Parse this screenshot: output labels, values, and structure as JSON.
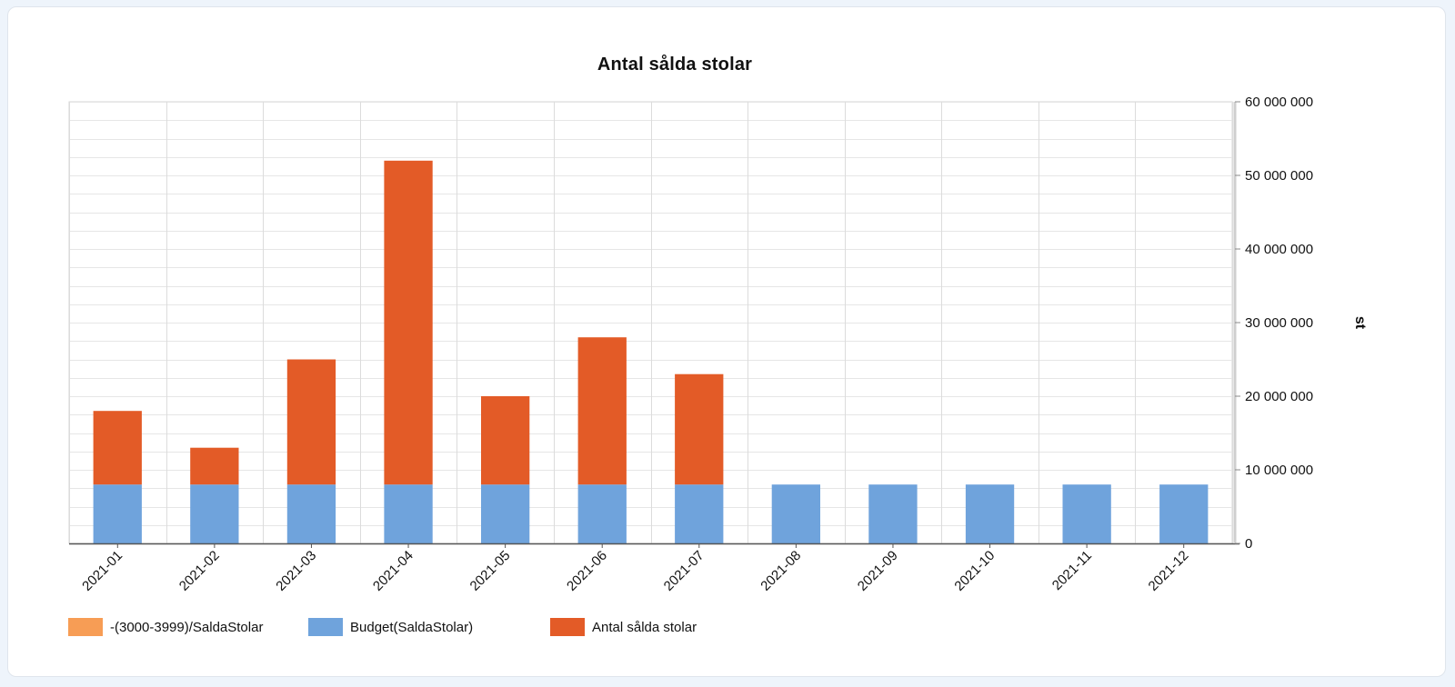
{
  "chart_data": {
    "type": "bar",
    "stacked": true,
    "title": "Antal sålda stolar",
    "xlabel": "",
    "ylabel": "st",
    "y_axis_position": "right",
    "ylim": [
      0,
      60000000
    ],
    "y_ticks": [
      0,
      10000000,
      20000000,
      30000000,
      40000000,
      50000000,
      60000000
    ],
    "y_tick_labels": [
      "0",
      "10 000 000",
      "20 000 000",
      "30 000 000",
      "40 000 000",
      "50 000 000",
      "60 000 000"
    ],
    "grid": true,
    "legend_placement": "bottom-left",
    "categories": [
      "2021-01",
      "2021-02",
      "2021-03",
      "2021-04",
      "2021-05",
      "2021-06",
      "2021-07",
      "2021-08",
      "2021-09",
      "2021-10",
      "2021-11",
      "2021-12"
    ],
    "series": [
      {
        "name": "-(3000-3999)/SaldaStolar",
        "color": "#f79d55",
        "values": [
          0,
          0,
          0,
          0,
          0,
          0,
          0,
          0,
          0,
          0,
          0,
          0
        ]
      },
      {
        "name": "Budget(SaldaStolar)",
        "color": "#6fa3dc",
        "values": [
          8000000,
          8000000,
          8000000,
          8000000,
          8000000,
          8000000,
          8000000,
          8000000,
          8000000,
          8000000,
          8000000,
          8000000
        ]
      },
      {
        "name": "Antal sålda stolar",
        "color": "#e35b27",
        "values": [
          10000000,
          5000000,
          17000000,
          44000000,
          12000000,
          20000000,
          15000000,
          0,
          0,
          0,
          0,
          0
        ]
      }
    ]
  }
}
